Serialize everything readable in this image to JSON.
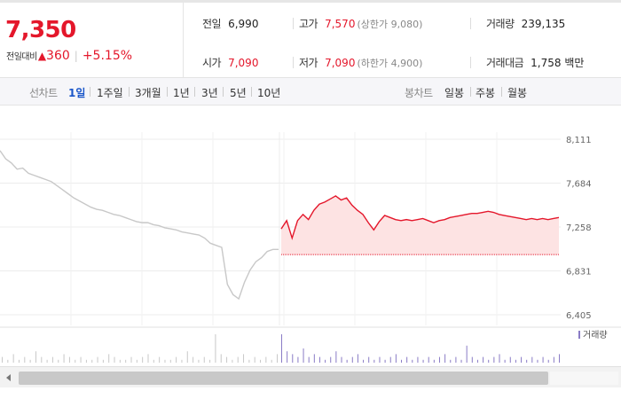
{
  "summary": {
    "price": "7,350",
    "change_label": "전일대비",
    "change_arrow": "▲",
    "change_amount": "360",
    "change_percent": "+5.15%",
    "prev_close": {
      "label": "전일",
      "value": "6,990"
    },
    "open": {
      "label": "시가",
      "value": "7,090"
    },
    "high": {
      "label": "고가",
      "value": "7,570",
      "limit_text": "(상한가 9,080)"
    },
    "low": {
      "label": "저가",
      "value": "7,090",
      "limit_text": "(하한가 4,900)"
    },
    "volume": {
      "label": "거래량",
      "value": "239,135"
    },
    "trade_value": {
      "label": "거래대금",
      "value": "1,758 백만"
    }
  },
  "period_bar": {
    "line_chart_label": "선차트",
    "line_periods": [
      "1일",
      "1주일",
      "3개월",
      "1년",
      "3년",
      "5년",
      "10년"
    ],
    "active_period": "1일",
    "candle_chart_label": "봉차트",
    "candle_periods": [
      "일봉",
      "주봉",
      "월봉"
    ]
  },
  "colors": {
    "up": "#e4172b",
    "prev_day_line": "#c8c8c8",
    "today_fill": "#fde3e3",
    "volume_prev": "#c8c8c8",
    "volume_today": "#8a7cc6",
    "active_tab": "#1a56c9"
  },
  "chart_data": {
    "type": "line",
    "y_ticks": [
      "8,111",
      "7,684",
      "7,258",
      "6,831",
      "6,405"
    ],
    "y_tick_values": [
      8111,
      7684,
      7258,
      6831,
      6405
    ],
    "ylim": [
      6405,
      8111
    ],
    "baseline": 6990,
    "series": [
      {
        "role": "previous-day",
        "values": [
          8000,
          7920,
          7880,
          7820,
          7830,
          7780,
          7760,
          7740,
          7720,
          7700,
          7660,
          7620,
          7580,
          7540,
          7510,
          7480,
          7450,
          7430,
          7420,
          7400,
          7380,
          7370,
          7350,
          7330,
          7310,
          7300,
          7300,
          7280,
          7270,
          7250,
          7240,
          7230,
          7210,
          7200,
          7190,
          7180,
          7150,
          7100,
          7080,
          7060,
          6700,
          6600,
          6560,
          6720,
          6840,
          6920,
          6960,
          7020,
          7040,
          7040
        ]
      },
      {
        "role": "today",
        "values": [
          7240,
          7320,
          7150,
          7320,
          7380,
          7330,
          7420,
          7480,
          7500,
          7530,
          7560,
          7520,
          7540,
          7470,
          7420,
          7380,
          7300,
          7230,
          7310,
          7370,
          7350,
          7330,
          7320,
          7330,
          7320,
          7330,
          7340,
          7320,
          7300,
          7320,
          7330,
          7350,
          7360,
          7370,
          7380,
          7390,
          7390,
          7400,
          7410,
          7400,
          7380,
          7370,
          7360,
          7350,
          7340,
          7330,
          7340,
          7330,
          7340,
          7330,
          7340,
          7350
        ]
      }
    ],
    "volume_legend": "거래량",
    "volume_prev": [
      2,
      1,
      3,
      1,
      2,
      1,
      4,
      2,
      1,
      2,
      1,
      3,
      2,
      1,
      2,
      1,
      1,
      2,
      1,
      3,
      2,
      1,
      1,
      2,
      1,
      2,
      3,
      1,
      2,
      1,
      1,
      2,
      1,
      4,
      2,
      1,
      2,
      1,
      10,
      3,
      2,
      1,
      2,
      3,
      1,
      2,
      1,
      2,
      1,
      3
    ],
    "volume_today": [
      10,
      4,
      3,
      2,
      5,
      2,
      3,
      2,
      1,
      2,
      4,
      2,
      1,
      2,
      3,
      1,
      2,
      1,
      2,
      1,
      2,
      3,
      1,
      2,
      1,
      2,
      1,
      2,
      1,
      2,
      3,
      1,
      2,
      1,
      6,
      2,
      1,
      2,
      1,
      2,
      3,
      1,
      2,
      1,
      2,
      1,
      2,
      1,
      2,
      1,
      2,
      3
    ]
  }
}
